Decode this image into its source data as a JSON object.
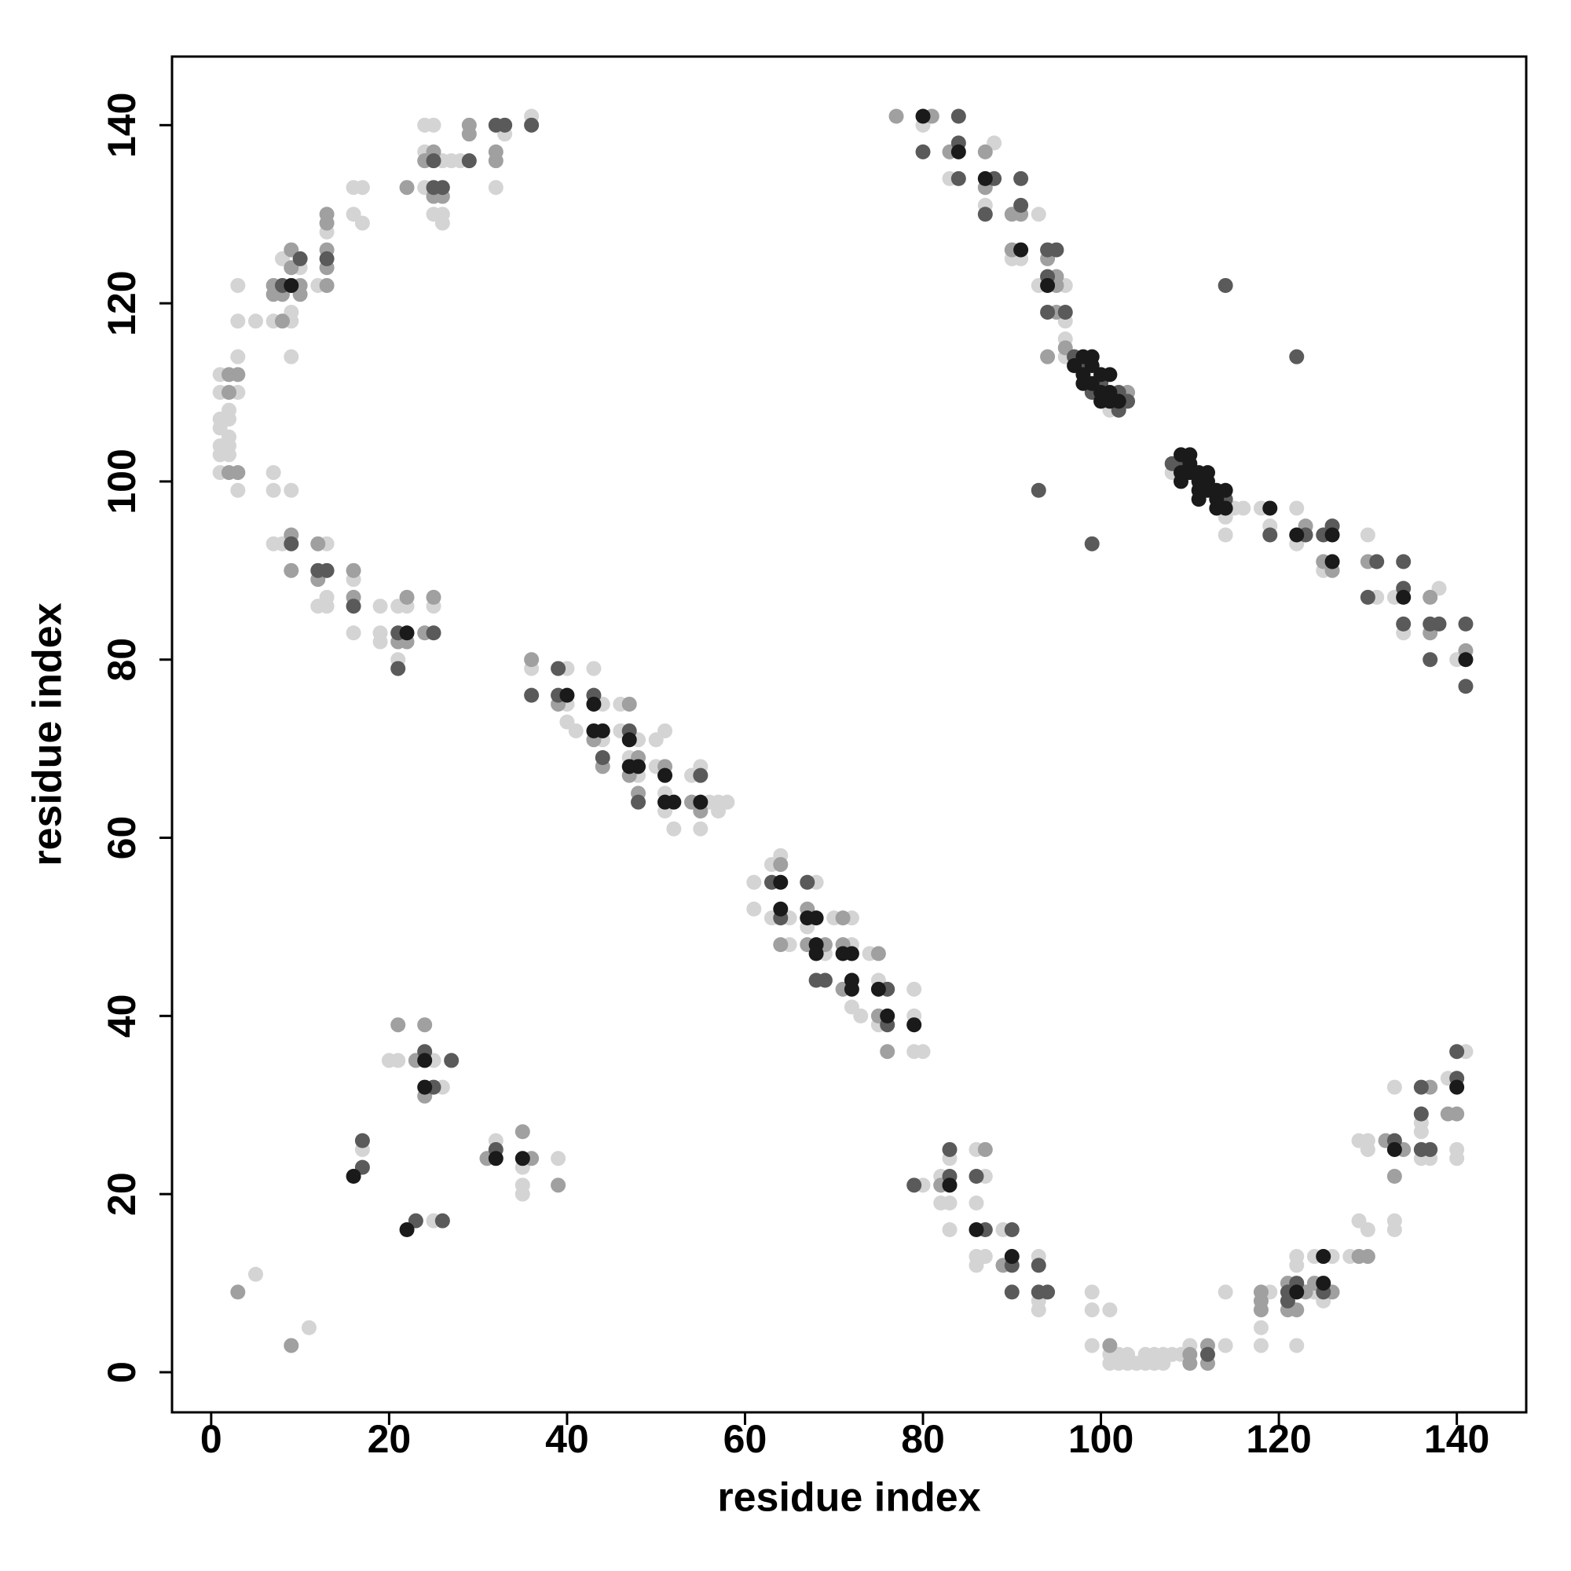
{
  "chart_data": {
    "type": "scatter",
    "x_label": "residue index",
    "y_label": "residue index",
    "xlim": [
      -4.4,
      147.8
    ],
    "ylim": [
      -4.5,
      147.7
    ],
    "xticks": [
      0,
      20,
      40,
      60,
      80,
      100,
      120,
      140
    ],
    "yticks": [
      0,
      20,
      40,
      60,
      80,
      100,
      120,
      140
    ],
    "series": [
      {
        "color": "#d4d4d4",
        "x": [
          1,
          1,
          3,
          2,
          2,
          1,
          1,
          2,
          1,
          2,
          1,
          2,
          1,
          3,
          3,
          3,
          3,
          5,
          7,
          9,
          9,
          8,
          10,
          9,
          12,
          13,
          16,
          16,
          17,
          17,
          24,
          24,
          24,
          25,
          25,
          26,
          26,
          26,
          27,
          28,
          32,
          33,
          36,
          7,
          7,
          9,
          7,
          8,
          13,
          13,
          12,
          13,
          16,
          16,
          19,
          19,
          19,
          21,
          21,
          22,
          25,
          36,
          40,
          40,
          40,
          41,
          43,
          44,
          44,
          46,
          46,
          48,
          47,
          48,
          50,
          51,
          50,
          51,
          51,
          52,
          54,
          55,
          56,
          55,
          57,
          57,
          58,
          61,
          61,
          63,
          64,
          63,
          65,
          65,
          68,
          67,
          69,
          70,
          72,
          72,
          72,
          73,
          74,
          75,
          75,
          79,
          79,
          79,
          80,
          20,
          21,
          26,
          25,
          17,
          25,
          32,
          35,
          35,
          35,
          39,
          5,
          11,
          80,
          82,
          83,
          82,
          83,
          83,
          86,
          87,
          86,
          86,
          87,
          86,
          89,
          93,
          93,
          93,
          99,
          99,
          101,
          99,
          101,
          101,
          102,
          102,
          103,
          103,
          104,
          105,
          105,
          106,
          106,
          107,
          107,
          108,
          109,
          110,
          114,
          114,
          118,
          118,
          119,
          122,
          122,
          122,
          124,
          124,
          125,
          126,
          128,
          129,
          130,
          129,
          130,
          130,
          133,
          133,
          133,
          136,
          136,
          136,
          137,
          139,
          141,
          140,
          140,
          80,
          83,
          87,
          88,
          90,
          91,
          93,
          93,
          96,
          96,
          96,
          96,
          101,
          108,
          114,
          114,
          115,
          116,
          118,
          119,
          122,
          122,
          125,
          130,
          131,
          133,
          134,
          138,
          140
        ],
        "values": [
          112,
          110,
          110,
          108,
          107,
          107,
          106,
          105,
          104,
          104,
          103,
          103,
          101,
          99,
          114,
          118,
          122,
          118,
          118,
          118,
          119,
          125,
          124,
          114,
          122,
          128,
          130,
          133,
          133,
          129,
          133,
          137,
          140,
          140,
          130,
          130,
          129,
          136,
          136,
          136,
          133,
          139,
          141,
          101,
          99,
          99,
          93,
          93,
          93,
          87,
          86,
          86,
          89,
          83,
          86,
          83,
          82,
          86,
          80,
          86,
          86,
          79,
          79,
          75,
          73,
          72,
          79,
          75,
          71,
          75,
          72,
          71,
          69,
          67,
          71,
          72,
          68,
          65,
          63,
          61,
          67,
          68,
          64,
          61,
          64,
          63,
          64,
          55,
          52,
          57,
          58,
          51,
          51,
          48,
          55,
          50,
          47,
          51,
          48,
          51,
          41,
          40,
          47,
          44,
          39,
          43,
          40,
          36,
          36,
          35,
          35,
          32,
          35,
          25,
          17,
          26,
          23,
          21,
          20,
          24,
          11,
          5,
          21,
          22,
          24,
          19,
          19,
          16,
          25,
          22,
          19,
          13,
          13,
          12,
          16,
          13,
          8,
          7,
          9,
          7,
          7,
          3,
          2,
          1,
          1,
          2,
          2,
          1,
          1,
          2,
          1,
          2,
          1,
          2,
          1,
          2,
          2,
          3,
          3,
          9,
          5,
          3,
          9,
          13,
          12,
          3,
          13,
          9,
          8,
          13,
          13,
          17,
          16,
          26,
          26,
          25,
          17,
          16,
          32,
          28,
          27,
          24,
          24,
          33,
          36,
          25,
          24,
          140,
          134,
          131,
          138,
          125,
          125,
          130,
          122,
          114,
          122,
          118,
          116,
          108,
          101,
          96,
          94,
          97,
          97,
          97,
          95,
          97,
          93,
          90,
          94,
          87,
          87,
          83,
          88,
          80
        ]
      },
      {
        "color": "#a0a0a0",
        "x": [
          2,
          3,
          2,
          2,
          3,
          8,
          7,
          7,
          8,
          9,
          9,
          10,
          10,
          13,
          13,
          13,
          13,
          13,
          22,
          24,
          25,
          25,
          26,
          29,
          29,
          32,
          32,
          9,
          9,
          12,
          12,
          16,
          16,
          21,
          22,
          22,
          24,
          25,
          36,
          39,
          43,
          44,
          47,
          48,
          47,
          48,
          51,
          55,
          54,
          64,
          64,
          67,
          67,
          69,
          71,
          71,
          71,
          75,
          75,
          76,
          21,
          23,
          24,
          24,
          31,
          35,
          36,
          39,
          3,
          9,
          82,
          87,
          89,
          101,
          110,
          110,
          112,
          112,
          118,
          118,
          118,
          121,
          121,
          122,
          123,
          124,
          126,
          129,
          130,
          132,
          133,
          134,
          137,
          139,
          140,
          77,
          81,
          83,
          87,
          87,
          90,
          91,
          90,
          94,
          95,
          95,
          95,
          94,
          96,
          103,
          123,
          125,
          126,
          130,
          137,
          137,
          141
        ],
        "values": [
          112,
          112,
          110,
          101,
          101,
          118,
          121,
          122,
          121,
          124,
          126,
          122,
          121,
          122,
          124,
          126,
          129,
          130,
          133,
          136,
          137,
          132,
          132,
          139,
          140,
          136,
          137,
          94,
          90,
          93,
          89,
          90,
          87,
          82,
          82,
          87,
          83,
          87,
          80,
          75,
          71,
          68,
          75,
          69,
          67,
          65,
          68,
          63,
          64,
          57,
          48,
          52,
          48,
          48,
          51,
          48,
          43,
          47,
          40,
          36,
          39,
          35,
          39,
          31,
          24,
          27,
          24,
          21,
          9,
          3,
          21,
          25,
          12,
          3,
          2,
          1,
          3,
          1,
          9,
          8,
          7,
          10,
          7,
          7,
          9,
          10,
          9,
          13,
          13,
          26,
          22,
          25,
          32,
          29,
          29,
          141,
          141,
          137,
          137,
          133,
          130,
          130,
          126,
          125,
          123,
          122,
          119,
          114,
          115,
          110,
          95,
          91,
          90,
          91,
          87,
          83,
          81
        ]
      },
      {
        "color": "#5a5a5a",
        "x": [
          10,
          8,
          13,
          25,
          26,
          29,
          32,
          33,
          36,
          25,
          9,
          12,
          13,
          16,
          21,
          21,
          25,
          36,
          39,
          39,
          43,
          44,
          47,
          48,
          55,
          63,
          64,
          67,
          68,
          69,
          76,
          76,
          24,
          25,
          27,
          17,
          17,
          23,
          26,
          32,
          79,
          83,
          83,
          86,
          87,
          90,
          90,
          90,
          93,
          93,
          94,
          112,
          121,
          121,
          122,
          125,
          133,
          136,
          136,
          136,
          137,
          140,
          140,
          80,
          84,
          84,
          84,
          88,
          87,
          91,
          91,
          94,
          95,
          94,
          94,
          96,
          97,
          98,
          100,
          99,
          102,
          102,
          103,
          93,
          99,
          108,
          109,
          114,
          119,
          123,
          125,
          126,
          131,
          130,
          134,
          134,
          134,
          137,
          137,
          138,
          141,
          141,
          114,
          122
        ],
        "values": [
          125,
          122,
          125,
          133,
          133,
          136,
          140,
          140,
          140,
          136,
          93,
          90,
          90,
          86,
          83,
          79,
          83,
          76,
          79,
          76,
          76,
          69,
          72,
          64,
          67,
          55,
          51,
          55,
          44,
          44,
          43,
          39,
          36,
          32,
          35,
          26,
          23,
          17,
          17,
          25,
          21,
          22,
          25,
          22,
          16,
          16,
          12,
          9,
          12,
          9,
          9,
          2,
          9,
          8,
          10,
          9,
          26,
          32,
          29,
          25,
          25,
          33,
          36,
          137,
          138,
          134,
          141,
          134,
          130,
          131,
          134,
          126,
          126,
          123,
          119,
          119,
          114,
          113,
          111,
          110,
          110,
          108,
          109,
          99,
          93,
          102,
          102,
          98,
          94,
          94,
          94,
          95,
          91,
          87,
          91,
          88,
          84,
          84,
          80,
          84,
          84,
          77,
          122,
          114
        ]
      },
      {
        "color": "#1a1a1a",
        "x": [
          9,
          22,
          40,
          43,
          43,
          44,
          47,
          47,
          48,
          51,
          51,
          52,
          55,
          64,
          64,
          67,
          68,
          68,
          68,
          71,
          72,
          72,
          72,
          75,
          76,
          79,
          24,
          24,
          16,
          22,
          32,
          35,
          83,
          86,
          90,
          122,
          125,
          125,
          133,
          140,
          80,
          84,
          87,
          91,
          94,
          97,
          98,
          99,
          98,
          99,
          98,
          99,
          100,
          100,
          101,
          101,
          100,
          101,
          102,
          109,
          110,
          110,
          109,
          110,
          109,
          111,
          112,
          111,
          112,
          111,
          112,
          111,
          113,
          113,
          113,
          114,
          114,
          119,
          122,
          126,
          126,
          134,
          141
        ],
        "values": [
          122,
          83,
          76,
          75,
          72,
          72,
          71,
          68,
          68,
          67,
          64,
          64,
          64,
          55,
          52,
          51,
          51,
          48,
          47,
          47,
          47,
          44,
          43,
          43,
          40,
          39,
          35,
          32,
          22,
          16,
          24,
          24,
          21,
          16,
          13,
          9,
          13,
          10,
          25,
          32,
          141,
          137,
          134,
          126,
          122,
          113,
          114,
          114,
          112,
          113,
          111,
          111,
          112,
          110,
          112,
          110,
          109,
          109,
          109,
          103,
          103,
          102,
          101,
          101,
          100,
          101,
          101,
          100,
          100,
          99,
          99,
          98,
          99,
          98,
          97,
          99,
          97,
          97,
          94,
          94,
          91,
          87,
          80
        ]
      }
    ]
  }
}
